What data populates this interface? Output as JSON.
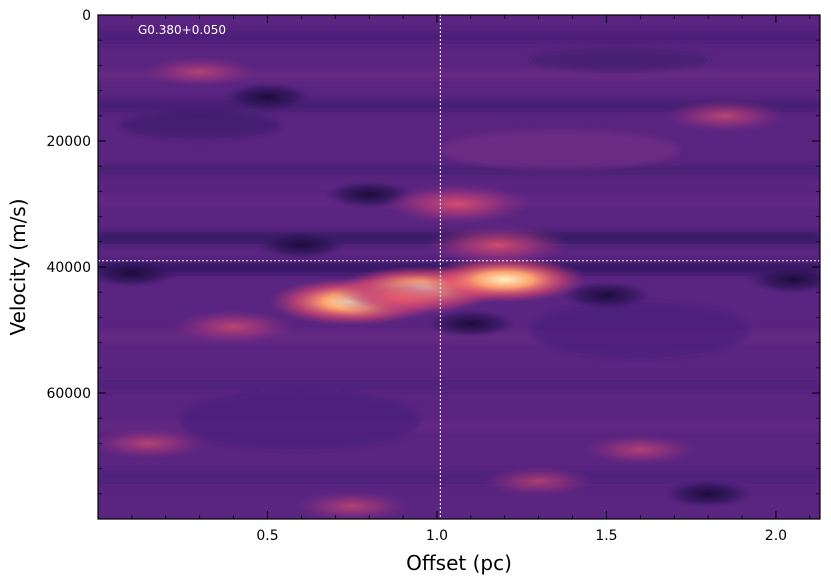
{
  "chart_data": {
    "type": "heatmap",
    "title": "",
    "annotation": "G0.380+0.050",
    "xlabel": "Offset (pc)",
    "ylabel": "Velocity (m/s)",
    "xlim": [
      0,
      2.13
    ],
    "ylim": [
      80000,
      0
    ],
    "x_ticks": [
      0.5,
      1.0,
      1.5,
      2.0
    ],
    "x_tick_labels": [
      "0.5",
      "1.0",
      "1.5",
      "2.0"
    ],
    "y_ticks": [
      0,
      20000,
      40000,
      60000
    ],
    "y_tick_labels": [
      "0",
      "20000",
      "40000",
      "60000"
    ],
    "crosshair": {
      "x": 1.01,
      "y": 39000
    },
    "colormap": "magma",
    "grid": false,
    "emission_peaks": [
      {
        "x": 0.75,
        "y": 45500,
        "intensity": 0.98
      },
      {
        "x": 0.95,
        "y": 43500,
        "intensity": 0.95
      },
      {
        "x": 1.2,
        "y": 42000,
        "intensity": 0.93
      },
      {
        "x": 1.06,
        "y": 30000,
        "intensity": 0.75
      },
      {
        "x": 1.18,
        "y": 36500,
        "intensity": 0.72
      },
      {
        "x": 0.4,
        "y": 49500,
        "intensity": 0.5
      },
      {
        "x": 1.85,
        "y": 16000,
        "intensity": 0.48
      },
      {
        "x": 0.9,
        "y": 45000,
        "intensity": 0.7
      },
      {
        "x": 0.15,
        "y": 68000,
        "intensity": 0.42
      },
      {
        "x": 0.75,
        "y": 78000,
        "intensity": 0.4
      },
      {
        "x": 1.6,
        "y": 69000,
        "intensity": 0.38
      },
      {
        "x": 0.3,
        "y": 9000,
        "intensity": 0.38
      },
      {
        "x": 1.3,
        "y": 74000,
        "intensity": 0.36
      }
    ],
    "absorption_features": [
      {
        "x": 0.1,
        "y": 41000
      },
      {
        "x": 0.8,
        "y": 28500
      },
      {
        "x": 1.1,
        "y": 49000
      },
      {
        "x": 1.5,
        "y": 44500
      },
      {
        "x": 2.05,
        "y": 42000
      },
      {
        "x": 0.5,
        "y": 13000
      },
      {
        "x": 1.8,
        "y": 76000
      },
      {
        "x": 0.6,
        "y": 36500
      }
    ]
  },
  "colors": {
    "background": "#ffffff",
    "axis": "#000000",
    "crosshair": "#ffffff",
    "annotation": "#ffffff"
  }
}
